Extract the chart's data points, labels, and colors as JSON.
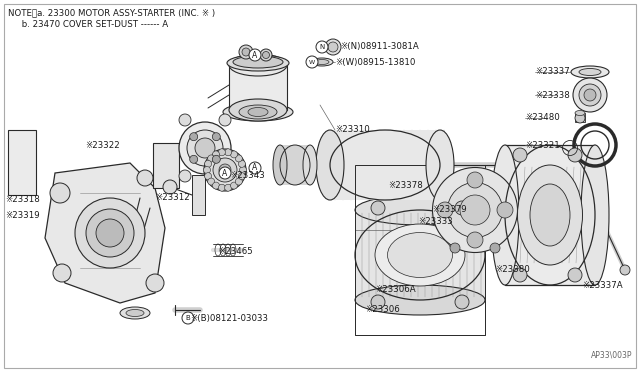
{
  "bg_color": "#ffffff",
  "line_color": "#2a2a2a",
  "text_color": "#1a1a1a",
  "fig_width": 6.4,
  "fig_height": 3.72,
  "note_line1": "NOTE、a. 23300 MOTOR ASSY-STARTER (INC. ※ )",
  "note_line2": "     b. 23470 COVER SET-DUST ------ A",
  "watermark": "AP33\\003P"
}
